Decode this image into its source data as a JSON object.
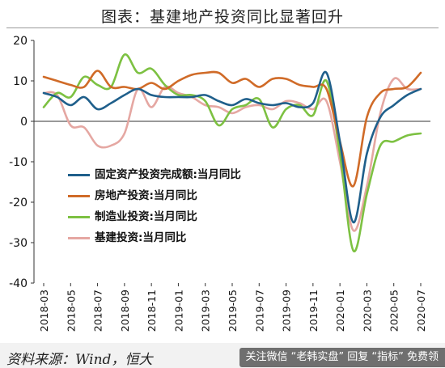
{
  "title": "图表：基建地产投资同比显著回升",
  "source": "资料来源：Wind，恒大",
  "watermark": "关注微信 “老韩实盘” 回复 “指标” 免费领",
  "chart_data": {
    "type": "line",
    "ylim": [
      -40,
      20
    ],
    "yticks": [
      20,
      10,
      0,
      -10,
      -20,
      -30,
      -40
    ],
    "xticks": [
      "2018-03",
      "2018-05",
      "2018-07",
      "2018-09",
      "2018-11",
      "2019-01",
      "2019-03",
      "2019-05",
      "2019-07",
      "2019-09",
      "2019-11",
      "2020-01",
      "2020-03",
      "2020-05",
      "2020-07"
    ],
    "x": [
      "2018-03",
      "2018-04",
      "2018-05",
      "2018-06",
      "2018-07",
      "2018-08",
      "2018-09",
      "2018-10",
      "2018-11",
      "2018-12",
      "2019-01",
      "2019-02",
      "2019-03",
      "2019-04",
      "2019-05",
      "2019-06",
      "2019-07",
      "2019-08",
      "2019-09",
      "2019-10",
      "2019-11",
      "2019-12",
      "2020-01",
      "2020-02",
      "2020-03",
      "2020-04",
      "2020-05",
      "2020-06",
      "2020-07"
    ],
    "legend_position": "center-left",
    "series": [
      {
        "name": "固定资产投资完成额:当月同比",
        "color": "#1f5f8b",
        "values": [
          7.0,
          6.0,
          4.0,
          6.0,
          3.0,
          4.5,
          6.5,
          8.0,
          6.5,
          6.0,
          6.0,
          6.0,
          6.5,
          5.0,
          4.0,
          5.5,
          4.5,
          4.0,
          4.5,
          3.5,
          4.5,
          12.0,
          -5.0,
          -25.0,
          -8.0,
          1.0,
          4.0,
          6.5,
          8.0
        ]
      },
      {
        "name": "房地产投资:当月同比",
        "color": "#d06b28",
        "values": [
          11.0,
          10.0,
          9.0,
          8.5,
          12.5,
          8.5,
          8.5,
          8.0,
          9.5,
          8.0,
          10.0,
          11.5,
          12.0,
          12.0,
          9.5,
          10.5,
          8.5,
          10.5,
          10.5,
          9.0,
          8.5,
          8.0,
          -5.0,
          -16.0,
          1.0,
          7.0,
          8.0,
          8.5,
          12.0
        ]
      },
      {
        "name": "制造业投资:当月同比",
        "color": "#7dc142",
        "values": [
          3.5,
          7.0,
          6.0,
          11.0,
          9.0,
          8.5,
          16.5,
          12.0,
          13.0,
          9.0,
          6.5,
          6.5,
          5.0,
          -1.0,
          3.0,
          4.0,
          5.5,
          -1.5,
          3.0,
          4.0,
          1.5,
          10.0,
          -8.0,
          -32.0,
          -18.0,
          -6.0,
          -5.0,
          -3.5,
          -3.0
        ]
      },
      {
        "name": "基建投资:当月同比",
        "color": "#e5a7a2",
        "values": [
          7.0,
          6.5,
          -1.0,
          -1.5,
          -6.0,
          -6.0,
          -3.0,
          8.0,
          3.5,
          8.5,
          7.0,
          6.0,
          4.0,
          3.5,
          2.0,
          3.5,
          4.0,
          3.0,
          5.0,
          4.5,
          3.0,
          5.0,
          -10.0,
          -27.0,
          -16.0,
          2.0,
          10.5,
          8.0,
          8.0
        ]
      }
    ]
  }
}
